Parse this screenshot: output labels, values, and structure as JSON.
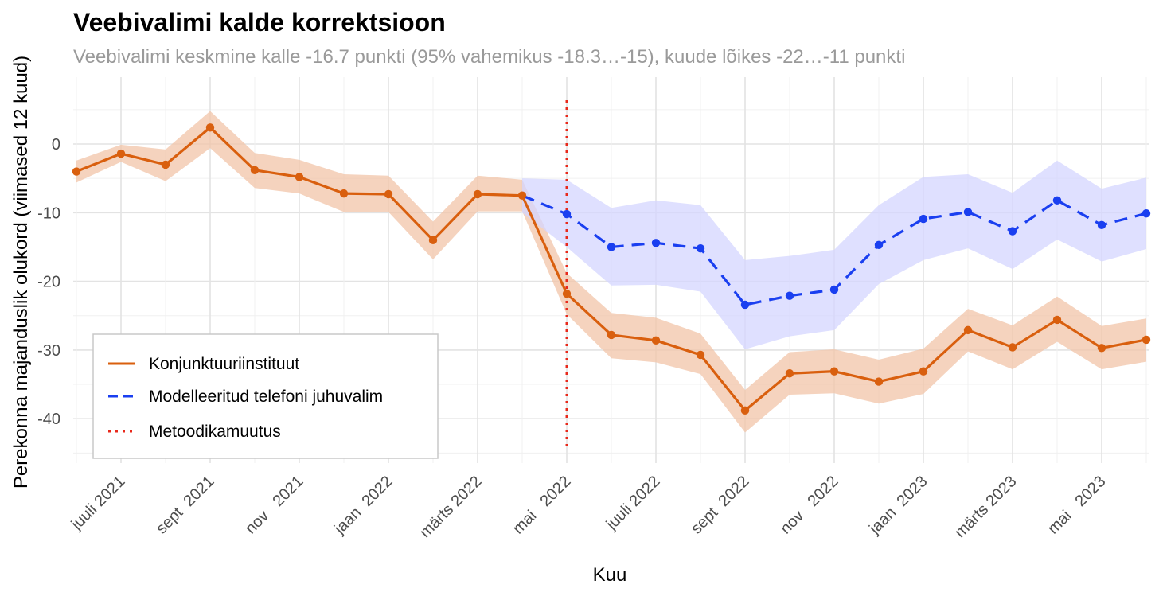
{
  "chart_data": {
    "type": "line",
    "title": "Veebivalimi kalde korrektsioon",
    "subtitle": "Veebivalimi keskmine kalle -16.7 punkti (95% vahemikus -18.3…-15), kuude lõikes -22…-11 punkti",
    "xlabel": "Kuu",
    "ylabel": "Perekonna majanduslik olukord (viimased 12 kuud)",
    "ylim": [
      -46,
      10
    ],
    "y_ticks": [
      0,
      -10,
      -20,
      -30,
      -40
    ],
    "y_tick_labels": [
      "0",
      "-10",
      "-20",
      "-30",
      "-40"
    ],
    "x_months": [
      "2021-06",
      "2021-07",
      "2021-08",
      "2021-09",
      "2021-10",
      "2021-11",
      "2021-12",
      "2022-01",
      "2022-02",
      "2022-03",
      "2022-04",
      "2022-05",
      "2022-06",
      "2022-07",
      "2022-08",
      "2022-09",
      "2022-10",
      "2022-11",
      "2022-12",
      "2023-01",
      "2023-02",
      "2023-03",
      "2023-04",
      "2023-05",
      "2023-06"
    ],
    "x_tick_labels": [
      "juuli 2021",
      "sept  2021",
      "nov   2021",
      "jaan  2022",
      "märts 2022",
      "mai   2022",
      "juuli 2022",
      "sept  2022",
      "nov   2022",
      "jaan  2023",
      "märts 2023",
      "mai   2023"
    ],
    "x_tick_months": [
      "2021-07",
      "2021-09",
      "2021-11",
      "2022-01",
      "2022-03",
      "2022-05",
      "2022-07",
      "2022-09",
      "2022-11",
      "2023-01",
      "2023-03",
      "2023-05"
    ],
    "series": [
      {
        "name": "Konjunktuuriinstituut",
        "color": "#d95f0e",
        "band_color": "#f2c4a8",
        "line_style": "solid",
        "months": [
          "2021-06",
          "2021-07",
          "2021-08",
          "2021-09",
          "2021-10",
          "2021-11",
          "2021-12",
          "2022-01",
          "2022-02",
          "2022-03",
          "2022-04",
          "2022-05",
          "2022-06",
          "2022-07",
          "2022-08",
          "2022-09",
          "2022-10",
          "2022-11",
          "2022-12",
          "2023-01",
          "2023-02",
          "2023-03",
          "2023-04",
          "2023-05",
          "2023-06"
        ],
        "values": [
          -4.0,
          -1.4,
          -3.0,
          2.4,
          -3.8,
          -4.8,
          -7.2,
          -7.3,
          -14.0,
          -7.3,
          -7.5,
          -21.8,
          -27.8,
          -28.6,
          -30.7,
          -38.8,
          -33.4,
          -33.1,
          -34.6,
          -33.1,
          -27.1,
          -29.6,
          -25.6,
          -29.7,
          -28.5
        ],
        "lower": [
          -5.6,
          -2.6,
          -5.4,
          -0.6,
          -6.4,
          -7.2,
          -9.9,
          -9.9,
          -16.8,
          -9.8,
          -9.8,
          -24.8,
          -31.2,
          -31.8,
          -33.5,
          -42.0,
          -36.5,
          -36.3,
          -37.8,
          -36.4,
          -30.2,
          -32.8,
          -28.8,
          -32.8,
          -31.7
        ],
        "upper": [
          -2.4,
          -0.1,
          -0.8,
          4.8,
          -1.3,
          -2.3,
          -4.4,
          -4.6,
          -11.3,
          -4.6,
          -5.2,
          -18.8,
          -24.6,
          -25.3,
          -27.6,
          -35.8,
          -30.3,
          -29.9,
          -31.4,
          -29.8,
          -24.0,
          -26.4,
          -22.2,
          -26.5,
          -25.4
        ]
      },
      {
        "name": "Modelleeritud telefoni juhuvalim",
        "color": "#1a3ff0",
        "band_color": "#d4d6ff",
        "line_style": "dashed",
        "months": [
          "2022-04",
          "2022-05",
          "2022-06",
          "2022-07",
          "2022-08",
          "2022-09",
          "2022-10",
          "2022-11",
          "2022-12",
          "2023-01",
          "2023-02",
          "2023-03",
          "2023-04",
          "2023-05",
          "2023-06"
        ],
        "values": [
          -7.5,
          -10.2,
          -15.0,
          -14.4,
          -15.2,
          -23.4,
          -22.1,
          -21.2,
          -14.7,
          -10.9,
          -9.9,
          -12.7,
          -8.2,
          -11.8,
          -10.1
        ],
        "lower": [
          -10.0,
          -15.0,
          -20.6,
          -20.5,
          -21.5,
          -29.9,
          -28.0,
          -27.1,
          -20.4,
          -16.9,
          -15.2,
          -18.2,
          -13.9,
          -17.1,
          -15.3
        ],
        "upper": [
          -5.0,
          -5.2,
          -9.3,
          -8.2,
          -8.9,
          -16.9,
          -16.3,
          -15.4,
          -8.9,
          -4.8,
          -4.4,
          -7.1,
          -2.4,
          -6.5,
          -4.9
        ]
      },
      {
        "name": "Metoodikamuutus",
        "color": "#e8291b",
        "line_style": "dotted",
        "x": "2022-05"
      }
    ],
    "legend": {
      "position": "bottom-left",
      "items": [
        "Konjunktuuriinstituut",
        "Modelleeritud telefoni juhuvalim",
        "Metoodikamuutus"
      ]
    },
    "grid": true
  }
}
